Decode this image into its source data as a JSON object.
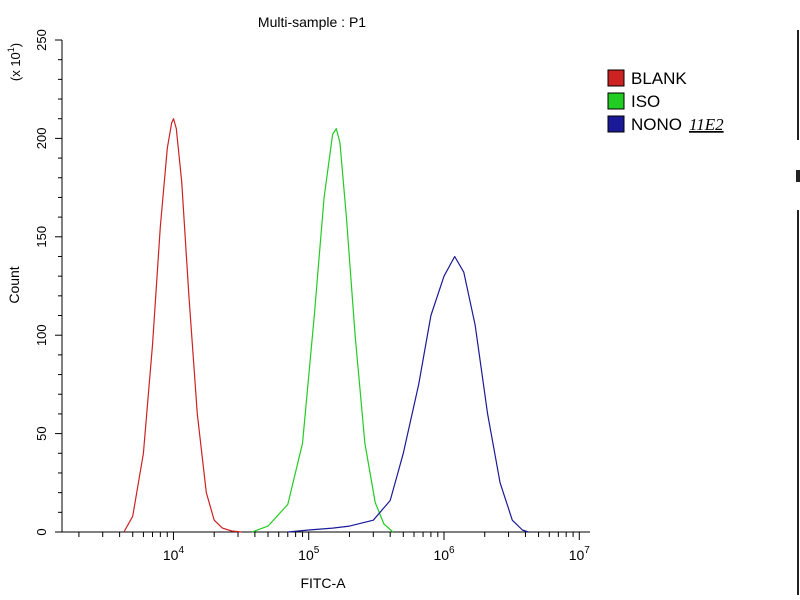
{
  "chart_data": {
    "type": "line",
    "title": "Multi-sample : P1",
    "xlabel": "FITC-A",
    "ylabel": "Count",
    "y_multiplier": "(x 10",
    "y_multiplier_exp": "1",
    "x_scale": "log",
    "xlim": [
      1500,
      12000000
    ],
    "ylim": [
      0,
      250
    ],
    "x_ticks": [
      {
        "base": "10",
        "exp": "4",
        "value": 10000
      },
      {
        "base": "10",
        "exp": "5",
        "value": 100000
      },
      {
        "base": "10",
        "exp": "6",
        "value": 1000000
      },
      {
        "base": "10",
        "exp": "7",
        "value": 10000000
      }
    ],
    "y_ticks": [
      0,
      50,
      100,
      150,
      200,
      250
    ],
    "legend_position": "right-outside-top",
    "series": [
      {
        "name": "BLANK",
        "color": "#cc2222",
        "x": [
          4300,
          5000,
          6000,
          7000,
          8000,
          9000,
          9700,
          10000,
          10500,
          11500,
          13000,
          15000,
          17500,
          20000,
          23000,
          27000,
          32000
        ],
        "y": [
          0,
          8,
          40,
          95,
          155,
          195,
          208,
          210,
          205,
          178,
          120,
          60,
          20,
          6,
          2,
          0.5,
          0
        ]
      },
      {
        "name": "ISO",
        "color": "#22cc22",
        "x": [
          38000,
          50000,
          70000,
          90000,
          110000,
          130000,
          150000,
          160000,
          170000,
          190000,
          220000,
          260000,
          310000,
          360000,
          420000
        ],
        "y": [
          0,
          3,
          14,
          45,
          110,
          170,
          202,
          205,
          198,
          160,
          100,
          45,
          15,
          4,
          0
        ]
      },
      {
        "name": "NONO",
        "label_suffix": "11E2",
        "color": "#1a1a99",
        "x": [
          70000,
          100000,
          150000,
          200000,
          300000,
          400000,
          500000,
          650000,
          800000,
          1000000,
          1200000,
          1400000,
          1700000,
          2100000,
          2600000,
          3200000,
          3800000,
          4200000
        ],
        "y": [
          0,
          1,
          2,
          3,
          6,
          16,
          40,
          75,
          110,
          130,
          140,
          132,
          105,
          60,
          25,
          6,
          1,
          0
        ]
      }
    ]
  }
}
